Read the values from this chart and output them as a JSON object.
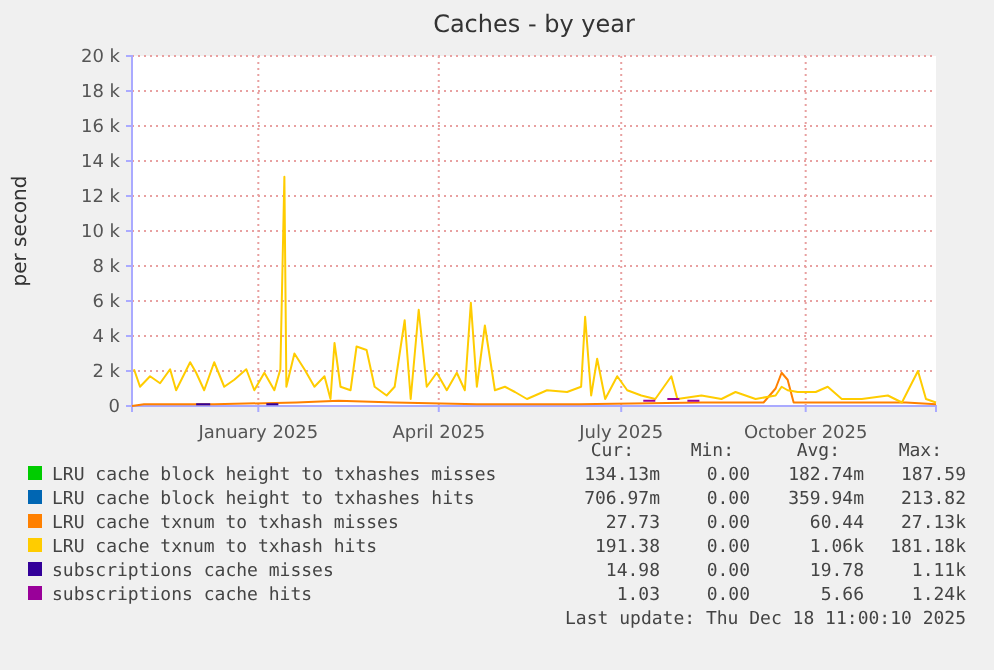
{
  "chart_data": {
    "type": "line",
    "title": "Caches - by year",
    "ylabel": "per second",
    "xlim": [
      "2024-10-30",
      "2025-12-05"
    ],
    "xticks": [
      {
        "value": "2025-01-01",
        "label": "January 2025"
      },
      {
        "value": "2025-04-01",
        "label": "April 2025"
      },
      {
        "value": "2025-07-01",
        "label": "July 2025"
      },
      {
        "value": "2025-10-01",
        "label": "October 2025"
      }
    ],
    "ylim": [
      0,
      20000
    ],
    "yticks": [
      0,
      {
        "value": 2000,
        "label": "2 k"
      },
      {
        "value": 4000,
        "label": "4 k"
      },
      {
        "value": 6000,
        "label": "6 k"
      },
      {
        "value": 8000,
        "label": "8 k"
      },
      {
        "value": 10000,
        "label": "10 k"
      },
      {
        "value": 12000,
        "label": "12 k"
      },
      {
        "value": 14000,
        "label": "14 k"
      },
      {
        "value": 16000,
        "label": "16 k"
      },
      {
        "value": 18000,
        "label": "18 k"
      },
      {
        "value": 20000,
        "label": "20 k"
      }
    ],
    "grid": true,
    "legend": "bottom",
    "series": [
      {
        "name": "LRU cache block height to txhashes misses",
        "color": "#00cc00"
      },
      {
        "name": "LRU cache block height to txhashes hits",
        "color": "#0066b3"
      },
      {
        "name": "LRU cache txnum to txhash misses",
        "color": "#ff8000",
        "x": [
          "2024-10-30",
          "2024-11-05",
          "2024-12-10",
          "2025-01-20",
          "2025-02-10",
          "2025-03-10",
          "2025-04-20",
          "2025-06-10",
          "2025-08-10",
          "2025-09-10",
          "2025-09-16",
          "2025-09-19",
          "2025-09-22",
          "2025-09-25",
          "2025-10-20",
          "2025-11-20",
          "2025-12-05"
        ],
        "values": [
          0,
          100,
          100,
          200,
          300,
          200,
          100,
          100,
          200,
          200,
          1000,
          1900,
          1500,
          200,
          200,
          200,
          100
        ]
      },
      {
        "name": "LRU cache txnum to txhash hits",
        "color": "#ffcc00",
        "x": [
          "2024-10-31",
          "2024-11-03",
          "2024-11-08",
          "2024-11-13",
          "2024-11-18",
          "2024-11-21",
          "2024-11-28",
          "2024-12-01",
          "2024-12-05",
          "2024-12-10",
          "2024-12-15",
          "2024-12-20",
          "2024-12-26",
          "2024-12-30",
          "2025-01-04",
          "2025-01-09",
          "2025-01-12",
          "2025-01-14",
          "2025-01-15",
          "2025-01-19",
          "2025-01-24",
          "2025-01-29",
          "2025-02-03",
          "2025-02-06",
          "2025-02-08",
          "2025-02-11",
          "2025-02-16",
          "2025-02-19",
          "2025-02-24",
          "2025-02-28",
          "2025-03-06",
          "2025-03-10",
          "2025-03-15",
          "2025-03-18",
          "2025-03-22",
          "2025-03-26",
          "2025-03-31",
          "2025-04-05",
          "2025-04-10",
          "2025-04-14",
          "2025-04-17",
          "2025-04-20",
          "2025-04-24",
          "2025-04-29",
          "2025-05-04",
          "2025-05-09",
          "2025-05-15",
          "2025-05-25",
          "2025-06-04",
          "2025-06-11",
          "2025-06-13",
          "2025-06-16",
          "2025-06-19",
          "2025-06-23",
          "2025-06-29",
          "2025-07-04",
          "2025-07-11",
          "2025-07-18",
          "2025-07-26",
          "2025-07-29",
          "2025-08-10",
          "2025-08-20",
          "2025-08-27",
          "2025-09-06",
          "2025-09-16",
          "2025-09-19",
          "2025-09-22",
          "2025-09-27",
          "2025-10-06",
          "2025-10-12",
          "2025-10-19",
          "2025-10-29",
          "2025-11-11",
          "2025-11-18",
          "2025-11-26",
          "2025-11-30",
          "2025-12-05"
        ],
        "values": [
          2100,
          1100,
          1700,
          1300,
          2100,
          900,
          2500,
          1900,
          900,
          2500,
          1100,
          1500,
          2100,
          900,
          1900,
          900,
          2100,
          13100,
          1100,
          3000,
          2100,
          1100,
          1700,
          400,
          3600,
          1100,
          900,
          3400,
          3200,
          1100,
          600,
          1100,
          4900,
          400,
          5500,
          1100,
          1900,
          900,
          1900,
          900,
          5900,
          1100,
          4600,
          900,
          1100,
          800,
          400,
          900,
          800,
          1100,
          5100,
          600,
          2700,
          400,
          1700,
          900,
          600,
          400,
          1700,
          400,
          600,
          400,
          800,
          400,
          600,
          1100,
          900,
          800,
          800,
          1100,
          400,
          400,
          600,
          200,
          2000,
          400,
          200
        ]
      },
      {
        "name": "subscriptions cache misses",
        "color": "#330099",
        "x": [
          "2024-12-01",
          "2024-12-08",
          "2025-01-01",
          "2025-01-05",
          "2025-01-11"
        ],
        "values": [
          100,
          100,
          null,
          100,
          100
        ]
      },
      {
        "name": "subscriptions cache hits",
        "color": "#990099",
        "x": [
          "2025-07-12",
          "2025-07-18",
          "2025-07-21",
          "2025-07-24",
          "2025-07-30",
          "2025-08-01",
          "2025-08-03",
          "2025-08-09"
        ],
        "values": [
          300,
          300,
          null,
          400,
          400,
          null,
          300,
          300
        ]
      }
    ],
    "annotations": [
      "Cur:",
      "Min:",
      "Avg:",
      "Max:",
      "134.13m",
      "0.00",
      "182.74m",
      "187.59",
      "706.97m",
      "0.00",
      "359.94m",
      "213.82",
      "27.73",
      "0.00",
      "60.44",
      "27.13k",
      "191.38",
      "0.00",
      "1.06k",
      "181.18k",
      "14.98",
      "0.00",
      "19.78",
      "1.11k",
      "1.03",
      "0.00",
      "5.66",
      "1.24k",
      "Last update: Thu Dec 18 11:00:10 2025"
    ]
  }
}
